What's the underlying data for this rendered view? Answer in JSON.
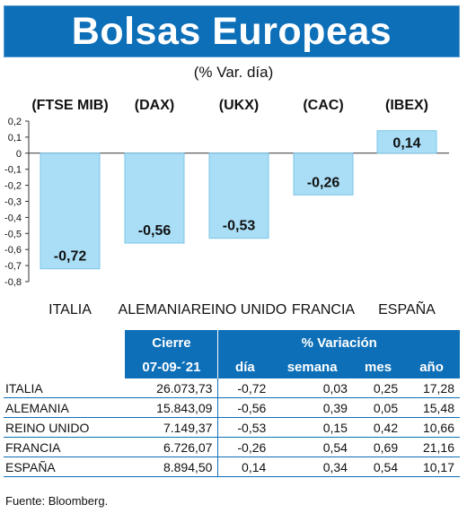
{
  "title": "Bolsas Europeas",
  "subtitle": "(% Var. día)",
  "source": "Fuente: Bloomberg.",
  "colors": {
    "brand": "#0d6fb8",
    "bar": "#a9def6",
    "bar_edge": "#7cc6e8",
    "white": "#ffffff"
  },
  "chart_data": {
    "type": "bar",
    "title": "Bolsas Europeas",
    "subtitle": "(% Var. día)",
    "categories": [
      "ITALIA",
      "ALEMANIA",
      "REINO UNIDO",
      "FRANCIA",
      "ESPAÑA"
    ],
    "tickers": [
      "(FTSE MIB)",
      "(DAX)",
      "(UKX)",
      "(CAC)",
      "(IBEX)"
    ],
    "values": [
      -0.72,
      -0.56,
      -0.53,
      -0.26,
      0.14
    ],
    "value_labels": [
      "-0,72",
      "-0,56",
      "-0,53",
      "-0,26",
      "0,14"
    ],
    "ylim": [
      -0.8,
      0.2
    ],
    "yticks": [
      0.2,
      0.1,
      0,
      -0.1,
      -0.2,
      -0.3,
      -0.4,
      -0.5,
      -0.6,
      -0.7,
      -0.8
    ],
    "ytick_labels": [
      "0,2",
      "0,1",
      "0",
      "-0,1",
      "-0,2",
      "-0,3",
      "-0,4",
      "-0,5",
      "-0,6",
      "-0,7",
      "-0,8"
    ],
    "grid": false
  },
  "table": {
    "header_cierre": "Cierre",
    "header_variacion": "% Variación",
    "date": "07-09-´21",
    "sub_headers": [
      "día",
      "semana",
      "mes",
      "año"
    ],
    "rows": [
      {
        "name": "ITALIA",
        "cierre": "26.073,73",
        "dia": "-0,72",
        "semana": "0,03",
        "mes": "0,25",
        "ano": "17,28"
      },
      {
        "name": "ALEMANIA",
        "cierre": "15.843,09",
        "dia": "-0,56",
        "semana": "0,39",
        "mes": "0,05",
        "ano": "15,48"
      },
      {
        "name": "REINO UNIDO",
        "cierre": "7.149,37",
        "dia": "-0,53",
        "semana": "0,15",
        "mes": "0,42",
        "ano": "10,66"
      },
      {
        "name": "FRANCIA",
        "cierre": "6.726,07",
        "dia": "-0,26",
        "semana": "0,54",
        "mes": "0,69",
        "ano": "21,16"
      },
      {
        "name": "ESPAÑA",
        "cierre": "8.894,50",
        "dia": "0,14",
        "semana": "0,34",
        "mes": "0,54",
        "ano": "10,17"
      }
    ]
  }
}
